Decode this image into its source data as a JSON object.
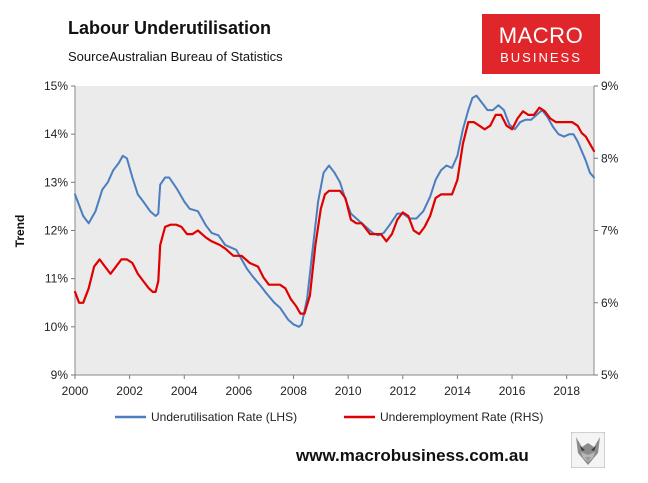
{
  "header": {
    "title": "Labour Underutilisation",
    "source": "SourceAustralian Bureau of Statistics"
  },
  "logo": {
    "line1": "MACRO",
    "line2": "BUSINESS"
  },
  "footer": {
    "url": "www.macrobusiness.com.au"
  },
  "colors": {
    "lhs": "#4a7ebf",
    "rhs": "#e00000",
    "plot_bg": "#ebebeb",
    "logo_bg": "#e0262b"
  },
  "chart_data": {
    "type": "line",
    "title": "Labour Underutilisation",
    "ylabel": "Trend",
    "xlim": [
      2000,
      2019
    ],
    "ylim_left": [
      9,
      15
    ],
    "ylim_right": [
      5,
      9
    ],
    "x_ticks": [
      2000,
      2002,
      2004,
      2006,
      2008,
      2010,
      2012,
      2014,
      2016,
      2018
    ],
    "x_tick_labels": [
      "2000",
      "2002",
      "2004",
      "2006",
      "2008",
      "2010",
      "2012",
      "2014",
      "2016",
      "2018"
    ],
    "y_left_ticks": [
      9,
      10,
      11,
      12,
      13,
      14,
      15
    ],
    "y_left_tick_labels": [
      "9%",
      "10%",
      "11%",
      "12%",
      "13%",
      "14%",
      "15%"
    ],
    "y_right_ticks": [
      5,
      6,
      7,
      8,
      9
    ],
    "y_right_tick_labels": [
      "5%",
      "6%",
      "7%",
      "8%",
      "9%"
    ],
    "legend_position": "bottom",
    "series": [
      {
        "name": "Underutilisation Rate (LHS)",
        "axis": "left",
        "color": "#4a7ebf",
        "points": [
          [
            2000.0,
            12.75
          ],
          [
            2000.3,
            12.3
          ],
          [
            2000.5,
            12.15
          ],
          [
            2000.75,
            12.4
          ],
          [
            2001.0,
            12.85
          ],
          [
            2001.2,
            13.0
          ],
          [
            2001.4,
            13.25
          ],
          [
            2001.6,
            13.4
          ],
          [
            2001.75,
            13.55
          ],
          [
            2001.9,
            13.5
          ],
          [
            2002.1,
            13.1
          ],
          [
            2002.3,
            12.75
          ],
          [
            2002.5,
            12.6
          ],
          [
            2002.75,
            12.4
          ],
          [
            2002.95,
            12.3
          ],
          [
            2003.05,
            12.35
          ],
          [
            2003.12,
            12.95
          ],
          [
            2003.3,
            13.1
          ],
          [
            2003.45,
            13.1
          ],
          [
            2003.75,
            12.85
          ],
          [
            2004.0,
            12.6
          ],
          [
            2004.2,
            12.45
          ],
          [
            2004.5,
            12.4
          ],
          [
            2004.8,
            12.1
          ],
          [
            2005.0,
            11.95
          ],
          [
            2005.25,
            11.9
          ],
          [
            2005.5,
            11.7
          ],
          [
            2005.7,
            11.65
          ],
          [
            2005.9,
            11.6
          ],
          [
            2006.1,
            11.4
          ],
          [
            2006.3,
            11.2
          ],
          [
            2006.5,
            11.05
          ],
          [
            2006.8,
            10.85
          ],
          [
            2007.0,
            10.7
          ],
          [
            2007.3,
            10.5
          ],
          [
            2007.5,
            10.4
          ],
          [
            2007.8,
            10.15
          ],
          [
            2008.0,
            10.05
          ],
          [
            2008.2,
            10.0
          ],
          [
            2008.3,
            10.05
          ],
          [
            2008.5,
            10.6
          ],
          [
            2008.7,
            11.6
          ],
          [
            2008.9,
            12.6
          ],
          [
            2009.1,
            13.2
          ],
          [
            2009.3,
            13.35
          ],
          [
            2009.5,
            13.2
          ],
          [
            2009.7,
            13.0
          ],
          [
            2009.9,
            12.65
          ],
          [
            2010.1,
            12.35
          ],
          [
            2010.3,
            12.25
          ],
          [
            2010.5,
            12.15
          ],
          [
            2010.7,
            12.05
          ],
          [
            2010.9,
            11.95
          ],
          [
            2011.1,
            11.9
          ],
          [
            2011.3,
            11.95
          ],
          [
            2011.5,
            12.1
          ],
          [
            2011.8,
            12.35
          ],
          [
            2012.0,
            12.35
          ],
          [
            2012.25,
            12.25
          ],
          [
            2012.5,
            12.25
          ],
          [
            2012.75,
            12.4
          ],
          [
            2013.0,
            12.7
          ],
          [
            2013.2,
            13.05
          ],
          [
            2013.4,
            13.25
          ],
          [
            2013.6,
            13.35
          ],
          [
            2013.8,
            13.3
          ],
          [
            2014.0,
            13.55
          ],
          [
            2014.2,
            14.1
          ],
          [
            2014.4,
            14.5
          ],
          [
            2014.55,
            14.75
          ],
          [
            2014.7,
            14.8
          ],
          [
            2014.9,
            14.65
          ],
          [
            2015.1,
            14.5
          ],
          [
            2015.3,
            14.5
          ],
          [
            2015.5,
            14.6
          ],
          [
            2015.7,
            14.5
          ],
          [
            2015.9,
            14.2
          ],
          [
            2016.1,
            14.1
          ],
          [
            2016.3,
            14.25
          ],
          [
            2016.5,
            14.3
          ],
          [
            2016.7,
            14.3
          ],
          [
            2016.9,
            14.4
          ],
          [
            2017.1,
            14.5
          ],
          [
            2017.3,
            14.35
          ],
          [
            2017.5,
            14.15
          ],
          [
            2017.7,
            14.0
          ],
          [
            2017.9,
            13.95
          ],
          [
            2018.1,
            14.0
          ],
          [
            2018.25,
            14.0
          ],
          [
            2018.4,
            13.85
          ],
          [
            2018.55,
            13.65
          ],
          [
            2018.7,
            13.45
          ],
          [
            2018.85,
            13.2
          ],
          [
            2019.0,
            13.1
          ]
        ]
      },
      {
        "name": "Underemployment Rate (RHS)",
        "axis": "right",
        "color": "#e00000",
        "points": [
          [
            2000.0,
            6.15
          ],
          [
            2000.15,
            6.0
          ],
          [
            2000.3,
            6.0
          ],
          [
            2000.5,
            6.2
          ],
          [
            2000.7,
            6.5
          ],
          [
            2000.9,
            6.6
          ],
          [
            2001.1,
            6.5
          ],
          [
            2001.3,
            6.4
          ],
          [
            2001.5,
            6.5
          ],
          [
            2001.7,
            6.6
          ],
          [
            2001.9,
            6.6
          ],
          [
            2002.1,
            6.55
          ],
          [
            2002.3,
            6.4
          ],
          [
            2002.5,
            6.3
          ],
          [
            2002.7,
            6.2
          ],
          [
            2002.85,
            6.15
          ],
          [
            2002.95,
            6.15
          ],
          [
            2003.05,
            6.3
          ],
          [
            2003.12,
            6.8
          ],
          [
            2003.3,
            7.05
          ],
          [
            2003.5,
            7.08
          ],
          [
            2003.7,
            7.08
          ],
          [
            2003.9,
            7.05
          ],
          [
            2004.1,
            6.95
          ],
          [
            2004.3,
            6.95
          ],
          [
            2004.5,
            7.0
          ],
          [
            2004.8,
            6.9
          ],
          [
            2005.0,
            6.85
          ],
          [
            2005.3,
            6.8
          ],
          [
            2005.5,
            6.75
          ],
          [
            2005.8,
            6.65
          ],
          [
            2006.1,
            6.65
          ],
          [
            2006.4,
            6.55
          ],
          [
            2006.7,
            6.5
          ],
          [
            2006.9,
            6.35
          ],
          [
            2007.1,
            6.25
          ],
          [
            2007.3,
            6.25
          ],
          [
            2007.5,
            6.25
          ],
          [
            2007.7,
            6.2
          ],
          [
            2007.9,
            6.05
          ],
          [
            2008.1,
            5.95
          ],
          [
            2008.25,
            5.85
          ],
          [
            2008.4,
            5.85
          ],
          [
            2008.6,
            6.1
          ],
          [
            2008.8,
            6.8
          ],
          [
            2009.0,
            7.3
          ],
          [
            2009.15,
            7.5
          ],
          [
            2009.3,
            7.55
          ],
          [
            2009.5,
            7.55
          ],
          [
            2009.7,
            7.55
          ],
          [
            2009.9,
            7.45
          ],
          [
            2010.1,
            7.15
          ],
          [
            2010.3,
            7.1
          ],
          [
            2010.5,
            7.1
          ],
          [
            2010.8,
            6.95
          ],
          [
            2011.0,
            6.95
          ],
          [
            2011.2,
            6.95
          ],
          [
            2011.4,
            6.85
          ],
          [
            2011.6,
            6.95
          ],
          [
            2011.8,
            7.15
          ],
          [
            2012.0,
            7.25
          ],
          [
            2012.2,
            7.2
          ],
          [
            2012.4,
            7.0
          ],
          [
            2012.6,
            6.95
          ],
          [
            2012.8,
            7.05
          ],
          [
            2013.0,
            7.2
          ],
          [
            2013.2,
            7.45
          ],
          [
            2013.4,
            7.5
          ],
          [
            2013.6,
            7.5
          ],
          [
            2013.8,
            7.5
          ],
          [
            2014.0,
            7.7
          ],
          [
            2014.2,
            8.2
          ],
          [
            2014.4,
            8.5
          ],
          [
            2014.6,
            8.5
          ],
          [
            2014.8,
            8.45
          ],
          [
            2015.0,
            8.4
          ],
          [
            2015.2,
            8.45
          ],
          [
            2015.4,
            8.6
          ],
          [
            2015.6,
            8.6
          ],
          [
            2015.8,
            8.45
          ],
          [
            2016.0,
            8.4
          ],
          [
            2016.2,
            8.55
          ],
          [
            2016.4,
            8.65
          ],
          [
            2016.6,
            8.6
          ],
          [
            2016.8,
            8.6
          ],
          [
            2017.0,
            8.7
          ],
          [
            2017.2,
            8.65
          ],
          [
            2017.4,
            8.55
          ],
          [
            2017.6,
            8.5
          ],
          [
            2017.8,
            8.5
          ],
          [
            2018.0,
            8.5
          ],
          [
            2018.2,
            8.5
          ],
          [
            2018.4,
            8.45
          ],
          [
            2018.55,
            8.35
          ],
          [
            2018.7,
            8.3
          ],
          [
            2018.85,
            8.2
          ],
          [
            2019.0,
            8.1
          ]
        ]
      }
    ]
  }
}
